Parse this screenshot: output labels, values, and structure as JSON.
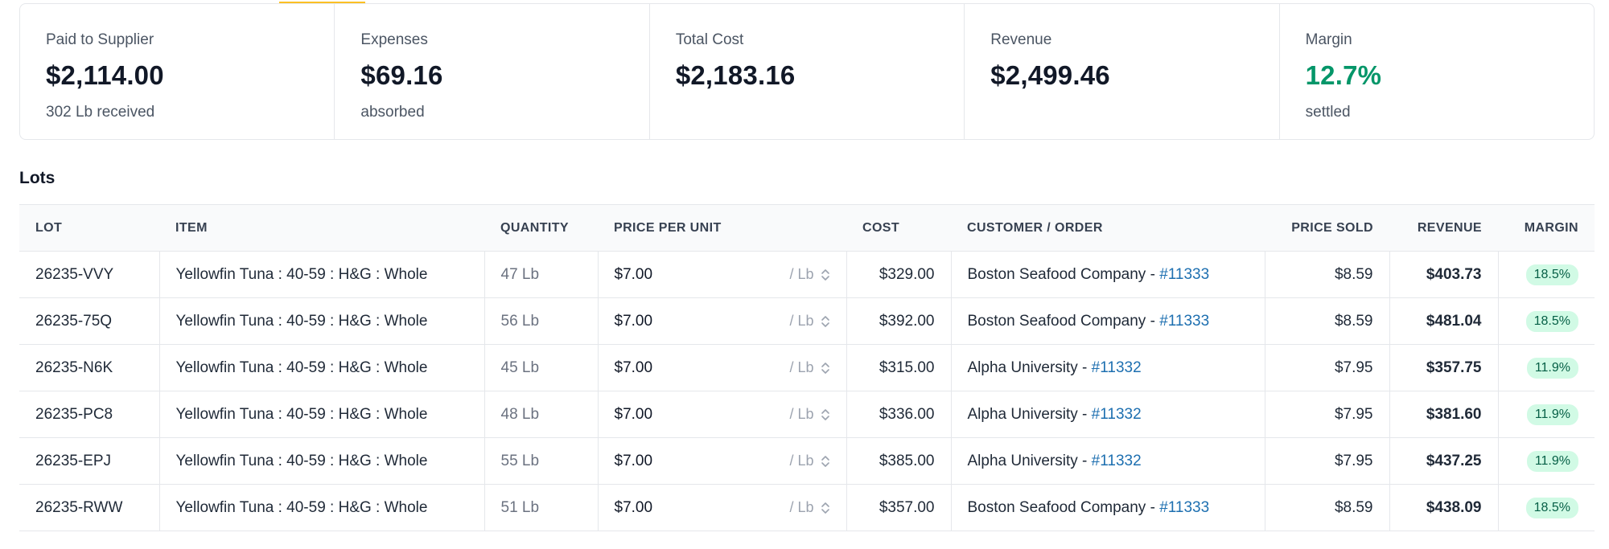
{
  "summary": [
    {
      "label": "Paid to Supplier",
      "value": "$2,114.00",
      "sub": "302 Lb received"
    },
    {
      "label": "Expenses",
      "value": "$69.16",
      "sub": "absorbed"
    },
    {
      "label": "Total Cost",
      "value": "$2,183.16",
      "sub": ""
    },
    {
      "label": "Revenue",
      "value": "$2,499.46",
      "sub": ""
    },
    {
      "label": "Margin",
      "value": "12.7%",
      "sub": "settled",
      "value_color": "#059669"
    }
  ],
  "accent_color": "#fbbf24",
  "lots": {
    "title": "Lots",
    "columns": [
      "Lot",
      "Item",
      "Quantity",
      "Price per unit",
      "Cost",
      "Customer / Order",
      "Price sold",
      "Revenue",
      "Margin"
    ],
    "unit_label": "/ Lb",
    "separator": " - ",
    "rows": [
      {
        "lot": "26235-VVY",
        "item": "Yellowfin Tuna : 40-59 : H&G : Whole",
        "quantity": "47 Lb",
        "price": "$7.00",
        "cost": "$329.00",
        "customer": "Boston Seafood Company",
        "order": "#11333",
        "price_sold": "$8.59",
        "revenue": "$403.73",
        "margin": "18.5%"
      },
      {
        "lot": "26235-75Q",
        "item": "Yellowfin Tuna : 40-59 : H&G : Whole",
        "quantity": "56 Lb",
        "price": "$7.00",
        "cost": "$392.00",
        "customer": "Boston Seafood Company",
        "order": "#11333",
        "price_sold": "$8.59",
        "revenue": "$481.04",
        "margin": "18.5%"
      },
      {
        "lot": "26235-N6K",
        "item": "Yellowfin Tuna : 40-59 : H&G : Whole",
        "quantity": "45 Lb",
        "price": "$7.00",
        "cost": "$315.00",
        "customer": "Alpha University",
        "order": "#11332",
        "price_sold": "$7.95",
        "revenue": "$357.75",
        "margin": "11.9%"
      },
      {
        "lot": "26235-PC8",
        "item": "Yellowfin Tuna : 40-59 : H&G : Whole",
        "quantity": "48 Lb",
        "price": "$7.00",
        "cost": "$336.00",
        "customer": "Alpha University",
        "order": "#11332",
        "price_sold": "$7.95",
        "revenue": "$381.60",
        "margin": "11.9%"
      },
      {
        "lot": "26235-EPJ",
        "item": "Yellowfin Tuna : 40-59 : H&G : Whole",
        "quantity": "55 Lb",
        "price": "$7.00",
        "cost": "$385.00",
        "customer": "Alpha University",
        "order": "#11332",
        "price_sold": "$7.95",
        "revenue": "$437.25",
        "margin": "11.9%"
      },
      {
        "lot": "26235-RWW",
        "item": "Yellowfin Tuna : 40-59 : H&G : Whole",
        "quantity": "51 Lb",
        "price": "$7.00",
        "cost": "$357.00",
        "customer": "Boston Seafood Company",
        "order": "#11333",
        "price_sold": "$8.59",
        "revenue": "$438.09",
        "margin": "18.5%"
      }
    ]
  }
}
